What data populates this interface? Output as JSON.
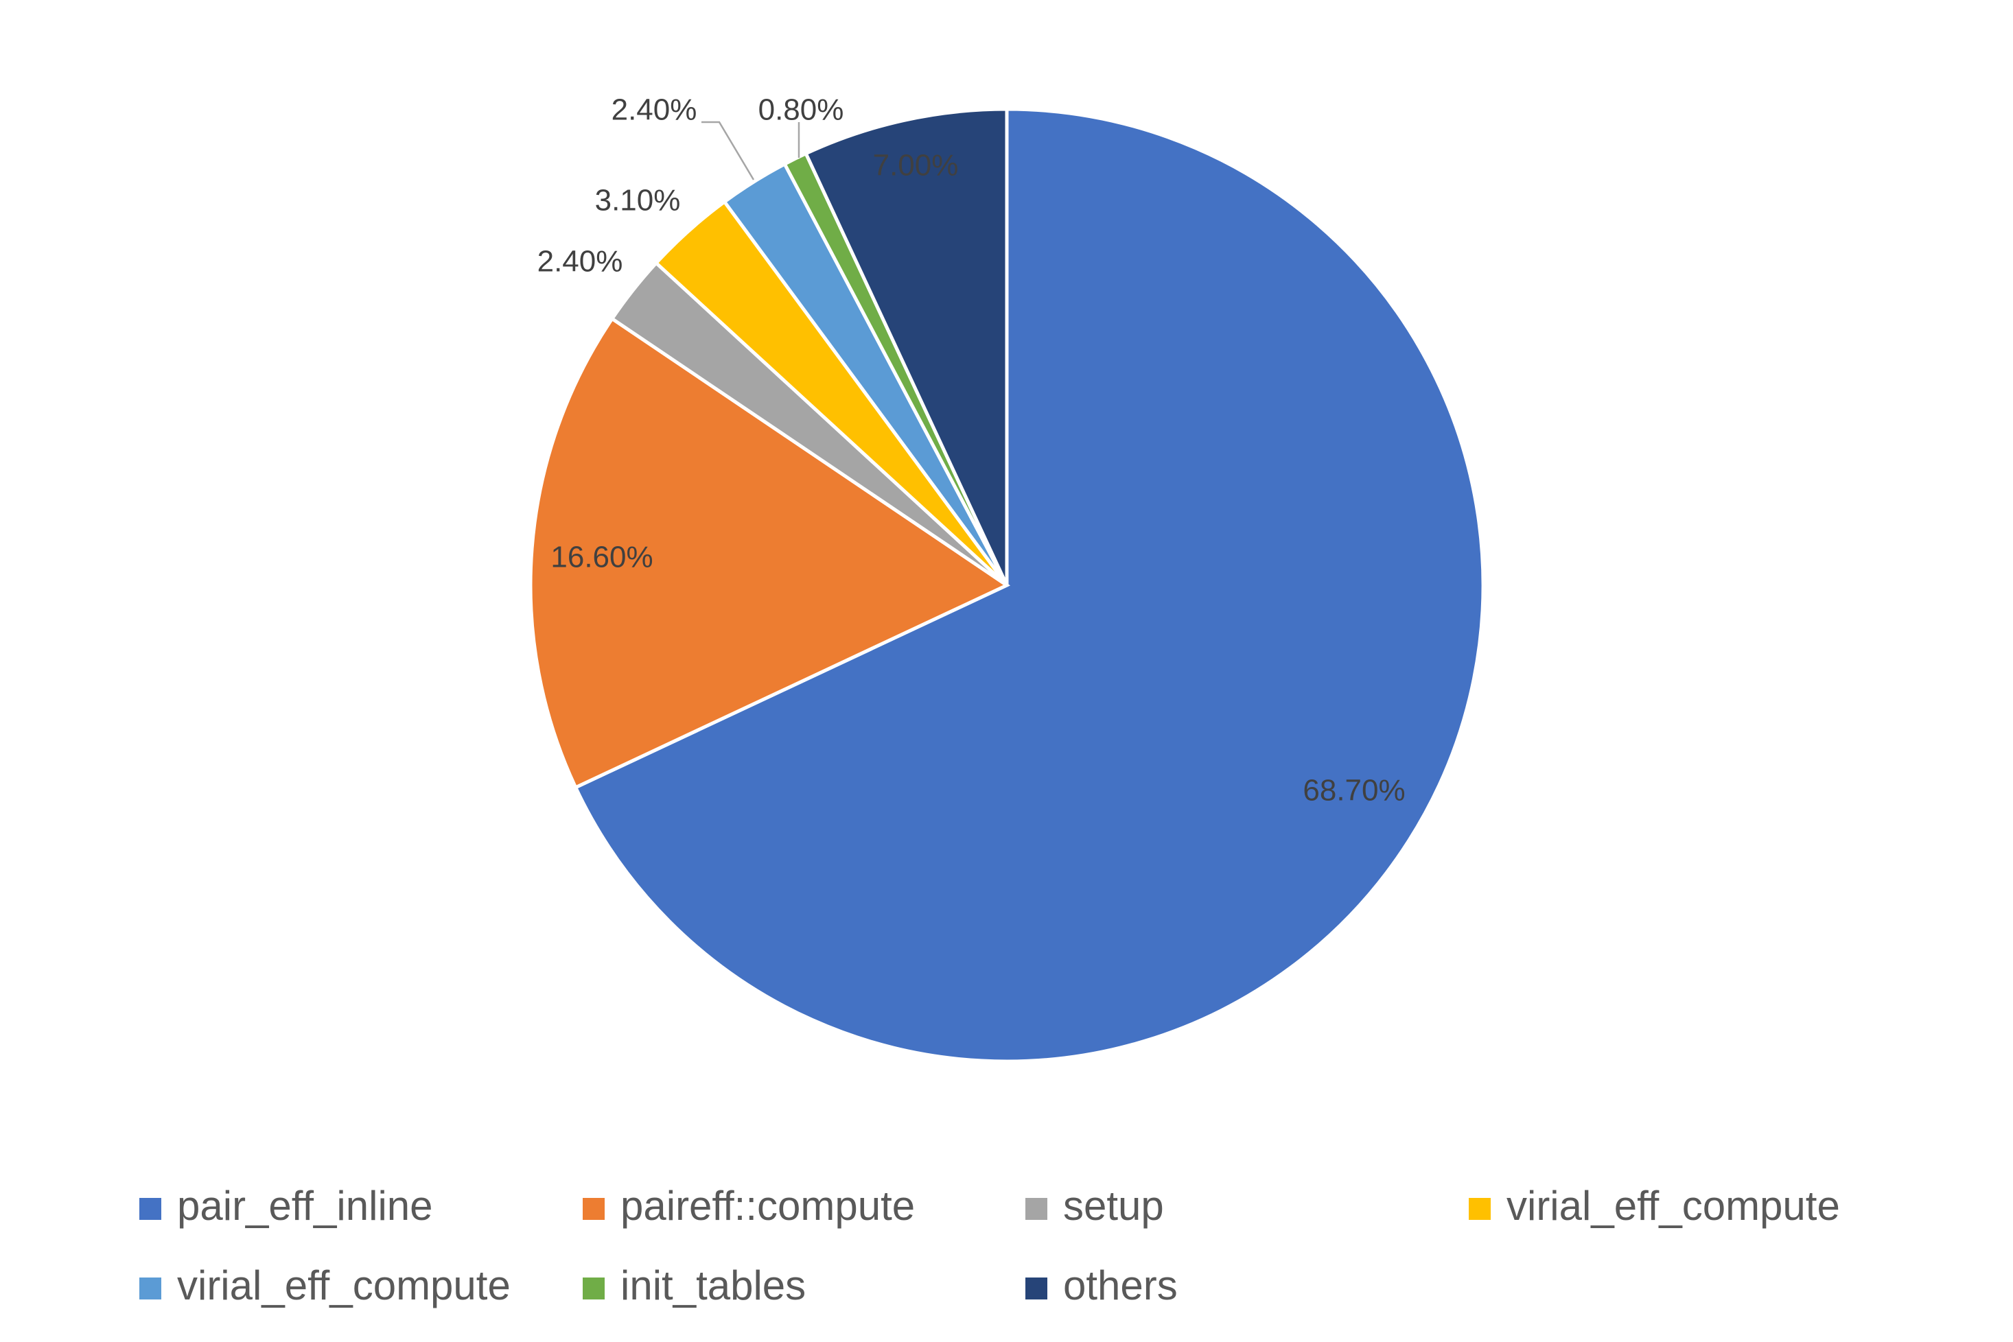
{
  "chart_data": {
    "type": "pie",
    "title": "",
    "legend_position": "bottom",
    "slices": [
      {
        "name": "pair_eff_inline",
        "value": 68.7,
        "label": "68.70%",
        "color": "#4472c4"
      },
      {
        "name": "paireff::compute",
        "value": 16.6,
        "label": "16.60%",
        "color": "#ed7d31"
      },
      {
        "name": "setup",
        "value": 2.4,
        "label": "2.40%",
        "color": "#a5a5a5"
      },
      {
        "name": "virial_eff_compute",
        "value": 3.1,
        "label": "3.10%",
        "color": "#ffc000"
      },
      {
        "name": "virial_eff_compute",
        "value": 2.4,
        "label": "2.40%",
        "color": "#5b9bd5"
      },
      {
        "name": "init_tables",
        "value": 0.8,
        "label": "0.80%",
        "color": "#70ad47"
      },
      {
        "name": "others",
        "value": 7.0,
        "label": "7.00%",
        "color": "#264478"
      }
    ]
  }
}
